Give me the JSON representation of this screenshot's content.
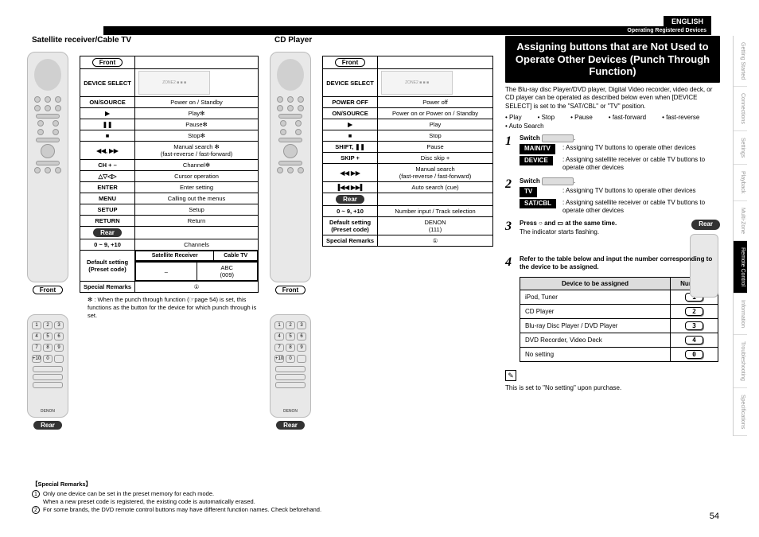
{
  "lang": "ENGLISH",
  "header_bar": "Operating Registered Devices",
  "side_nav": {
    "items": [
      "Getting Started",
      "Connections",
      "Settings",
      "Playback",
      "Multi-Zone",
      "Remote Control",
      "Information",
      "Troubleshooting",
      "Specifications"
    ],
    "active_index": 5
  },
  "page_number": "54",
  "col1": {
    "title": "Satellite receiver/Cable TV",
    "front_label": "Front",
    "rear_label": "Rear",
    "table": {
      "device_select": "DEVICE SELECT",
      "rows": [
        {
          "k": "ON/SOURCE",
          "v": "Power on / Standby"
        },
        {
          "k": "▶",
          "v": "Play✻"
        },
        {
          "k": "❚❚",
          "v": "Pause✻"
        },
        {
          "k": "■",
          "v": "Stop✻"
        },
        {
          "k": "◀◀, ▶▶",
          "v": "Manual search ✻\n(fast-reverse / fast-forward)"
        },
        {
          "k": "CH + –",
          "v": "Channel✻"
        },
        {
          "k": "△▽◁▷",
          "v": "Cursor operation"
        },
        {
          "k": "ENTER",
          "v": "Enter setting"
        },
        {
          "k": "MENU",
          "v": "Calling out the menus"
        },
        {
          "k": "SETUP",
          "v": "Setup"
        },
        {
          "k": "RETURN",
          "v": "Return"
        }
      ],
      "rear_rows_header": "0 ~ 9, +10",
      "rear_rows_val": "Channels",
      "default_setting": "Default setting\n(Preset code)",
      "sat_col": "Satellite Receiver",
      "cable_col": "Cable TV",
      "sat_val": "–",
      "cable_val": "ABC\n(009)",
      "special": "Special Remarks",
      "special_val": "①"
    },
    "footnote": "✻ : When the punch through function (☞page 54) is set, this functions as the button for the device for which punch through is set."
  },
  "col2": {
    "title": "CD Player",
    "front_label": "Front",
    "rear_label": "Rear",
    "table": {
      "device_select": "DEVICE SELECT",
      "rows": [
        {
          "k": "POWER OFF",
          "v": "Power off"
        },
        {
          "k": "ON/SOURCE",
          "v": "Power on or Power on / Standby"
        },
        {
          "k": "▶",
          "v": "Play"
        },
        {
          "k": "■",
          "v": "Stop"
        },
        {
          "k": "SHIFT, ❚❚",
          "v": "Pause"
        },
        {
          "k": "SKIP +",
          "v": "Disc skip +"
        },
        {
          "k": "◀◀ ▶▶",
          "v": "Manual search\n(fast-reverse / fast-forward)"
        },
        {
          "k": "▐◀◀ ▶▶▌",
          "v": "Auto search (cue)"
        }
      ],
      "rear_rows_header": "0 ~ 9, +10",
      "rear_rows_val": "Number input / Track selection",
      "default_setting": "Default setting\n(Preset code)",
      "default_val": "DENON\n(111)",
      "special": "Special Remarks",
      "special_val": "①"
    }
  },
  "col3": {
    "title": "Assigning buttons that are Not Used to Operate Other Devices (Punch Through Function)",
    "intro": "The Blu-ray disc Player/DVD player, Digital Video recorder, video deck, or CD player can be operated as described below even when [DEVICE SELECT] is set to the \"SAT/CBL\" or \"TV\" position.",
    "bullets": [
      "• Play",
      "• Stop",
      "• Pause",
      "• fast-forward",
      "• fast-reverse",
      "• Auto Search"
    ],
    "step1": {
      "lead": "Switch",
      "row1_k": "MAIN/TV",
      "row1_v": ": Assigning TV buttons to operate other devices",
      "row2_k": "DEVICE",
      "row2_v": ": Assigning satellite receiver or cable TV buttons to operate other devices"
    },
    "step2": {
      "lead": "Switch",
      "row1_k": "TV",
      "row1_v": ": Assigning TV buttons to operate other devices",
      "row2_k": "SAT/CBL",
      "row2_v": ": Assigning satellite receiver or cable TV buttons to operate other devices"
    },
    "step3": {
      "line": "Press ○ and ▭ at the same time.",
      "sub": "The indicator starts flashing.",
      "rear_label": "Rear"
    },
    "step4": {
      "line": "Refer to the table below and input the number corresponding to the device to be assigned."
    },
    "assign_table": {
      "h1": "Device to be assigned",
      "h2": "Numbers",
      "rows": [
        {
          "d": "iPod, Tuner",
          "n": "1"
        },
        {
          "d": "CD Player",
          "n": "2"
        },
        {
          "d": "Blu-ray Disc Player / DVD Player",
          "n": "3"
        },
        {
          "d": "DVD Recorder, Video Deck",
          "n": "4"
        },
        {
          "d": "No setting",
          "n": "0"
        }
      ]
    },
    "note": "This is set to \"No setting\" upon purchase."
  },
  "remarks": {
    "title": "【Special Remarks】",
    "r1": "Only one device can be set in the preset memory for each mode.\nWhen a new preset code is registered, the existing code is automatically erased.",
    "r2": "For some brands, the DVD remote control buttons may have different function names. Check beforehand."
  },
  "brand": "DENON"
}
